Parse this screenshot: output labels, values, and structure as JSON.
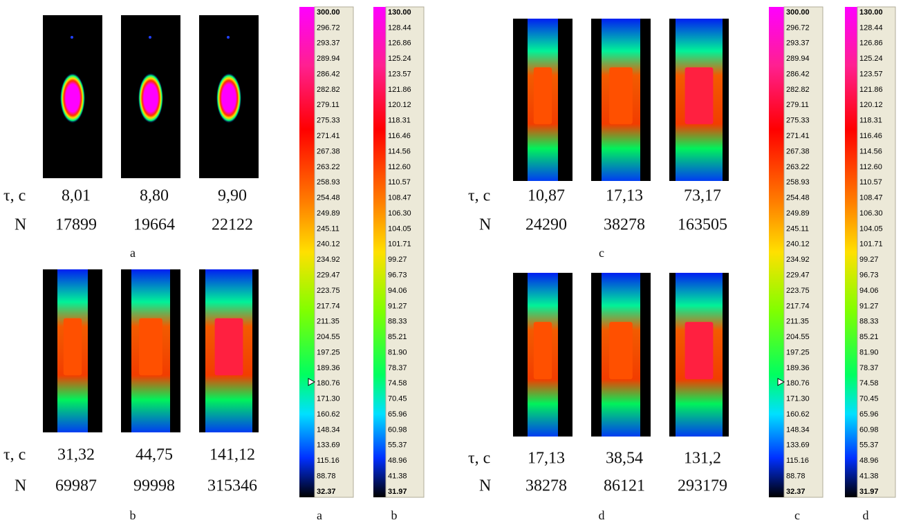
{
  "panels": [
    {
      "caption": "a",
      "tau_label": "τ, c",
      "n_label": "N",
      "tau": [
        "8,01",
        "8,80",
        "9,90"
      ],
      "n": [
        "17899",
        "19664",
        "22122"
      ]
    },
    {
      "caption": "b",
      "tau_label": "τ, c",
      "n_label": "N",
      "tau": [
        "31,32",
        "44,75",
        "141,12"
      ],
      "n": [
        "69987",
        "99998",
        "315346"
      ]
    },
    {
      "caption": "c",
      "tau_label": "τ, c",
      "n_label": "N",
      "tau": [
        "10,87",
        "17,13",
        "73,17"
      ],
      "n": [
        "24290",
        "38278",
        "163505"
      ]
    },
    {
      "caption": "d",
      "tau_label": "τ, c",
      "n_label": "N",
      "tau": [
        "17,13",
        "38,54",
        "131,2"
      ],
      "n": [
        "38278",
        "86121",
        "293179"
      ]
    }
  ],
  "scales": [
    {
      "caption": "a",
      "labels": [
        "300.00",
        "296.72",
        "293.37",
        "289.94",
        "286.42",
        "282.82",
        "279.11",
        "275.33",
        "271.41",
        "267.38",
        "263.22",
        "258.93",
        "254.48",
        "249.89",
        "245.11",
        "240.12",
        "234.92",
        "229.47",
        "223.75",
        "217.74",
        "211.35",
        "204.55",
        "197.25",
        "189.36",
        "180.76",
        "171.30",
        "160.62",
        "148.34",
        "133.69",
        "115.16",
        "88.78",
        "32.37"
      ]
    },
    {
      "caption": "b",
      "labels": [
        "130.00",
        "128.44",
        "126.86",
        "125.24",
        "123.57",
        "121.86",
        "120.12",
        "118.31",
        "116.46",
        "114.56",
        "112.60",
        "110.57",
        "108.47",
        "106.30",
        "104.05",
        "101.71",
        "99.27",
        "96.73",
        "94.06",
        "91.27",
        "88.33",
        "85.21",
        "81.90",
        "78.37",
        "74.58",
        "70.45",
        "65.96",
        "60.98",
        "55.37",
        "48.96",
        "41.38",
        "31.97"
      ]
    },
    {
      "caption": "c",
      "labels": [
        "300.00",
        "296.72",
        "293.37",
        "289.94",
        "286.42",
        "282.82",
        "279.11",
        "275.33",
        "271.41",
        "267.38",
        "263.22",
        "258.93",
        "254.48",
        "249.89",
        "245.11",
        "240.12",
        "234.92",
        "229.47",
        "223.75",
        "217.74",
        "211.35",
        "204.55",
        "197.25",
        "189.36",
        "180.76",
        "171.30",
        "160.62",
        "148.34",
        "133.69",
        "115.16",
        "88.78",
        "32.37"
      ]
    },
    {
      "caption": "d",
      "labels": [
        "130.00",
        "128.44",
        "126.86",
        "125.24",
        "123.57",
        "121.86",
        "120.12",
        "118.31",
        "116.46",
        "114.56",
        "112.60",
        "110.57",
        "108.47",
        "106.30",
        "104.05",
        "101.71",
        "99.27",
        "96.73",
        "94.06",
        "91.27",
        "88.33",
        "85.21",
        "81.90",
        "78.37",
        "74.58",
        "70.45",
        "65.96",
        "60.98",
        "55.37",
        "48.96",
        "41.38",
        "31.97"
      ]
    }
  ]
}
